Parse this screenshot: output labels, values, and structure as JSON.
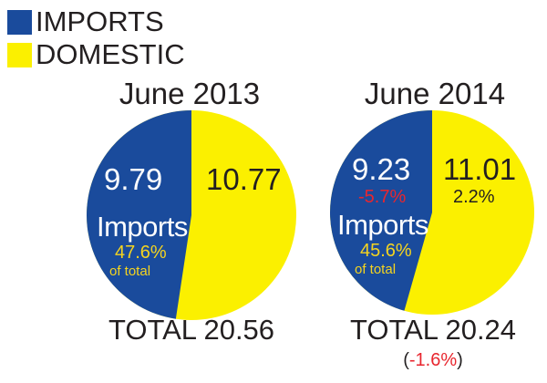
{
  "legend": [
    {
      "label": "IMPORTS",
      "color": "#1a4b9c"
    },
    {
      "label": "DOMESTIC",
      "color": "#fbf000"
    }
  ],
  "colors": {
    "imports": "#1a4b9c",
    "domestic": "#fbf000",
    "text_on_blue": "#ffffff",
    "highlight": "#f5d41f",
    "negative": "#e8262e"
  },
  "chart_data": [
    {
      "type": "pie",
      "title": "June 2013",
      "slices": [
        {
          "name": "IMPORTS",
          "value": 9.79,
          "share_pct": 47.6
        },
        {
          "name": "DOMESTIC",
          "value": 10.77
        }
      ],
      "labels": {
        "imports_value": "9.79",
        "imports_word": "Imports",
        "imports_share": "47.6%",
        "of_total": "of total",
        "domestic_value": "10.77"
      },
      "total": "TOTAL 20.56"
    },
    {
      "type": "pie",
      "title": "June 2014",
      "slices": [
        {
          "name": "IMPORTS",
          "value": 9.23,
          "share_pct": 45.6
        },
        {
          "name": "DOMESTIC",
          "value": 11.01
        }
      ],
      "labels": {
        "imports_value": "9.23",
        "imports_change": "-5.7%",
        "imports_word": "Imports",
        "imports_share": "45.6%",
        "of_total": "of total",
        "domestic_value": "11.01",
        "domestic_change": "2.2%"
      },
      "total": "TOTAL 20.24",
      "total_change": {
        "open": "(",
        "value": "-1.6%",
        "close": ")"
      }
    }
  ]
}
